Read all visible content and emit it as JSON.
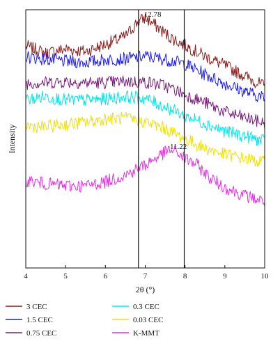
{
  "chart_data": {
    "type": "line",
    "title": "",
    "xlabel": "2θ (°)",
    "ylabel": "Intensity",
    "xlim": [
      4,
      10
    ],
    "x_ticks": [
      4,
      5,
      6,
      7,
      8,
      9,
      10
    ],
    "grid": false,
    "legend_position": "bottom",
    "vertical_markers": [
      6.83,
      7.98
    ],
    "annotations": [
      {
        "text": "12.78",
        "x": 6.9,
        "series": "3 CEC"
      },
      {
        "text": "11.22",
        "x": 7.55,
        "series": "K-MMT"
      }
    ],
    "note": "relative intensity, offset by series (no y tick labels)",
    "series": [
      {
        "name": "3 CEC",
        "color": "#8b1a1a",
        "x": [
          4.0,
          4.5,
          5.0,
          5.5,
          6.0,
          6.5,
          6.8,
          7.0,
          7.3,
          7.6,
          8.0,
          8.5,
          9.0,
          9.5,
          10.0
        ],
        "y": [
          0.86,
          0.832,
          0.848,
          0.838,
          0.866,
          0.896,
          0.952,
          0.968,
          0.934,
          0.896,
          0.862,
          0.82,
          0.784,
          0.744,
          0.702
        ]
      },
      {
        "name": "1.5 CEC",
        "color": "#1a1aff",
        "x": [
          4.0,
          4.5,
          5.0,
          5.5,
          6.0,
          6.5,
          7.0,
          7.5,
          8.0,
          8.5,
          9.0,
          9.5,
          10.0
        ],
        "y": [
          0.818,
          0.808,
          0.8,
          0.796,
          0.806,
          0.81,
          0.82,
          0.808,
          0.79,
          0.75,
          0.714,
          0.684,
          0.658
        ]
      },
      {
        "name": "0.75 CEC",
        "color": "#7a1a7a",
        "x": [
          4.0,
          4.5,
          5.0,
          5.5,
          6.0,
          6.5,
          7.0,
          7.5,
          8.0,
          8.5,
          9.0,
          9.5,
          10.0
        ],
        "y": [
          0.716,
          0.718,
          0.722,
          0.718,
          0.718,
          0.722,
          0.72,
          0.706,
          0.672,
          0.64,
          0.604,
          0.582,
          0.56
        ]
      },
      {
        "name": "0.3 CEC",
        "color": "#00e5e5",
        "x": [
          4.0,
          4.5,
          5.0,
          5.5,
          6.0,
          6.5,
          7.0,
          7.5,
          8.0,
          8.5,
          9.0,
          9.5,
          10.0
        ],
        "y": [
          0.65,
          0.664,
          0.65,
          0.65,
          0.654,
          0.664,
          0.656,
          0.624,
          0.59,
          0.56,
          0.53,
          0.51,
          0.49
        ]
      },
      {
        "name": "0.03 CEC",
        "color": "#f0e000",
        "x": [
          4.0,
          4.5,
          5.0,
          5.5,
          6.0,
          6.5,
          7.0,
          7.5,
          8.0,
          8.5,
          9.0,
          9.5,
          10.0
        ],
        "y": [
          0.55,
          0.546,
          0.556,
          0.564,
          0.578,
          0.58,
          0.566,
          0.54,
          0.5,
          0.464,
          0.44,
          0.424,
          0.408
        ]
      },
      {
        "name": "K-MMT",
        "color": "#e62ee6",
        "x": [
          4.0,
          4.5,
          5.0,
          5.5,
          6.0,
          6.5,
          7.0,
          7.3,
          7.6,
          7.8,
          8.0,
          8.3,
          8.6,
          9.0,
          9.5,
          10.0
        ],
        "y": [
          0.34,
          0.326,
          0.318,
          0.318,
          0.334,
          0.36,
          0.4,
          0.43,
          0.456,
          0.448,
          0.424,
          0.4,
          0.352,
          0.312,
          0.28,
          0.258
        ]
      }
    ]
  }
}
